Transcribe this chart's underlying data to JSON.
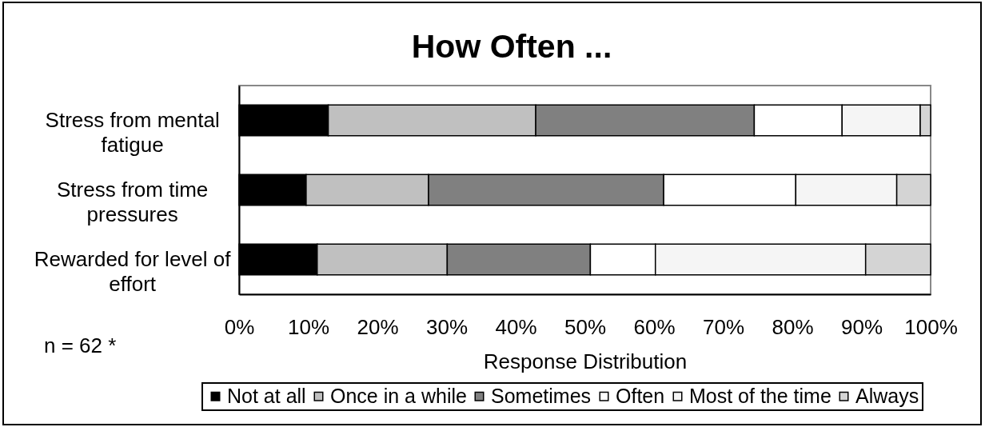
{
  "chart_data": {
    "type": "bar",
    "title": "How Often ...",
    "xlabel": "Response Distribution",
    "orientation": "horizontal",
    "stacked": true,
    "categories": [
      "Stress from mental fatigue",
      "Stress from time pressures",
      "Rewarded for level of effort"
    ],
    "series": [
      {
        "name": "Not at all",
        "color": "#000000",
        "values": [
          12.9,
          9.7,
          11.3
        ]
      },
      {
        "name": "Once in a while",
        "color": "#c0c0c0",
        "values": [
          30.0,
          17.7,
          18.8
        ]
      },
      {
        "name": "Sometimes",
        "color": "#808080",
        "values": [
          31.6,
          34.0,
          20.7
        ]
      },
      {
        "name": "Often",
        "color": "#ffffff",
        "values": [
          12.7,
          19.1,
          9.4
        ]
      },
      {
        "name": "Most of the time",
        "color": "#f5f5f5",
        "values": [
          11.3,
          14.6,
          30.4
        ]
      },
      {
        "name": "Always",
        "color": "#d4d4d4",
        "values": [
          1.5,
          4.9,
          9.4
        ]
      }
    ],
    "xlim": [
      0,
      100
    ],
    "xticks": [
      {
        "value": 0,
        "label": "0%"
      },
      {
        "value": 10,
        "label": "10%"
      },
      {
        "value": 20,
        "label": "20%"
      },
      {
        "value": 30,
        "label": "30%"
      },
      {
        "value": 40,
        "label": "40%"
      },
      {
        "value": 50,
        "label": "50%"
      },
      {
        "value": 60,
        "label": "60%"
      },
      {
        "value": 70,
        "label": "70%"
      },
      {
        "value": 80,
        "label": "80%"
      },
      {
        "value": 90,
        "label": "90%"
      },
      {
        "value": 100,
        "label": "100%"
      }
    ],
    "annotations": [
      "n = 62 *"
    ],
    "legend": "bottom"
  }
}
